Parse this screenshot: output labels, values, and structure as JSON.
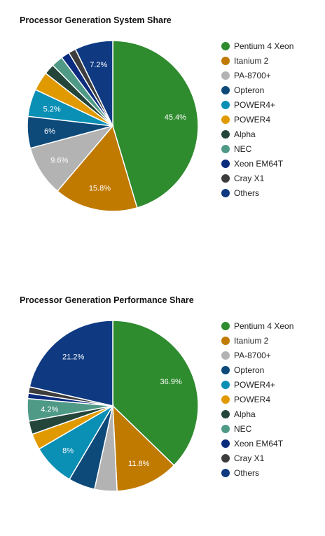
{
  "chart_data": [
    {
      "type": "pie",
      "title": "Processor Generation System Share",
      "slices": [
        {
          "label": "Pentium 4 Xeon",
          "value": 45.4,
          "color": "#2e8b2e",
          "display": "45.4%"
        },
        {
          "label": "Itanium 2",
          "value": 15.8,
          "color": "#c07a00",
          "display": "15.8%"
        },
        {
          "label": "PA-8700+",
          "value": 9.6,
          "color": "#b3b3b3",
          "display": "9.6%"
        },
        {
          "label": "Opteron",
          "value": 6.0,
          "color": "#0d4a7a",
          "display": "6%"
        },
        {
          "label": "POWER4+",
          "value": 5.2,
          "color": "#0a8fb5",
          "display": "5.2%"
        },
        {
          "label": "POWER4",
          "value": 3.6,
          "color": "#e09a00",
          "display": ""
        },
        {
          "label": "Alpha",
          "value": 2.0,
          "color": "#24463a",
          "display": ""
        },
        {
          "label": "NEC",
          "value": 2.2,
          "color": "#4f9a86",
          "display": ""
        },
        {
          "label": "Xeon EM64T",
          "value": 1.6,
          "color": "#0a2b7e",
          "display": ""
        },
        {
          "label": "Cray X1",
          "value": 1.4,
          "color": "#3d3d3d",
          "display": ""
        },
        {
          "label": "Others",
          "value": 7.2,
          "color": "#0f3a82",
          "display": "7.2%"
        }
      ],
      "legend_position": "right"
    },
    {
      "type": "pie",
      "title": "Processor Generation Performance Share",
      "slices": [
        {
          "label": "Pentium 4 Xeon",
          "value": 36.9,
          "color": "#2e8b2e",
          "display": "36.9%"
        },
        {
          "label": "Itanium 2",
          "value": 11.8,
          "color": "#c07a00",
          "display": "11.8%"
        },
        {
          "label": "PA-8700+",
          "value": 4.2,
          "color": "#b3b3b3",
          "display": ""
        },
        {
          "label": "Opteron",
          "value": 5.0,
          "color": "#0d4a7a",
          "display": ""
        },
        {
          "label": "POWER4+",
          "value": 8.0,
          "color": "#0a8fb5",
          "display": "8%"
        },
        {
          "label": "POWER4",
          "value": 3.0,
          "color": "#e09a00",
          "display": ""
        },
        {
          "label": "Alpha",
          "value": 2.5,
          "color": "#24463a",
          "display": ""
        },
        {
          "label": "NEC",
          "value": 4.2,
          "color": "#4f9a86",
          "display": "4.2%"
        },
        {
          "label": "Xeon EM64T",
          "value": 1.0,
          "color": "#0a2b7e",
          "display": ""
        },
        {
          "label": "Cray X1",
          "value": 1.2,
          "color": "#3d3d3d",
          "display": ""
        },
        {
          "label": "Others",
          "value": 21.2,
          "color": "#0f3a82",
          "display": "21.2%"
        }
      ],
      "legend_position": "right"
    }
  ]
}
